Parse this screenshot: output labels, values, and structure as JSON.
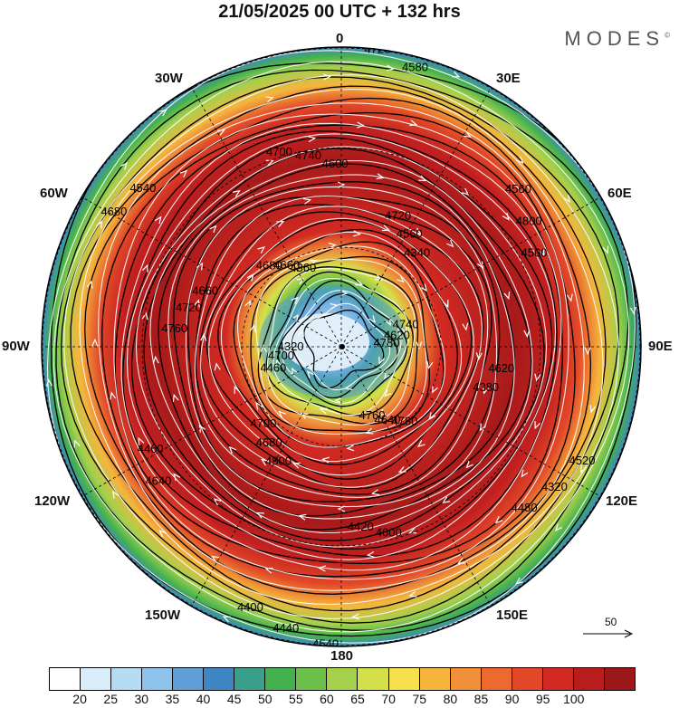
{
  "title": "21/05/2025  00 UTC  + 132 hrs",
  "brand": "MODES",
  "brand_mark": "©",
  "longitude_labels": {
    "n": "0",
    "ne": "30E",
    "e1": "60E",
    "e": "90E",
    "se1": "120E",
    "se": "150E",
    "s": "180",
    "sw": "150W",
    "sw1": "120W",
    "w": "90W",
    "nw1": "60W",
    "nw": "30W"
  },
  "reference_vector": "50",
  "colorbar": {
    "colors": [
      "#ffffff",
      "#d8ecfa",
      "#b6dcf4",
      "#8ec4ec",
      "#5f9fd8",
      "#3f86c4",
      "#3aa08c",
      "#44b14f",
      "#6cc04a",
      "#a4d04c",
      "#d4e04a",
      "#f6e04c",
      "#f5b53d",
      "#f0903a",
      "#ec6a30",
      "#e24828",
      "#d22a22",
      "#b81c1c",
      "#9a1818"
    ],
    "ticks": [
      "20",
      "25",
      "30",
      "35",
      "40",
      "45",
      "50",
      "55",
      "60",
      "65",
      "70",
      "75",
      "80",
      "85",
      "90",
      "95",
      "100"
    ]
  },
  "contour_labels": [
    "4780",
    "4760",
    "4700",
    "4660",
    "4600",
    "4500",
    "4480",
    "4400",
    "4320",
    "4360",
    "4340",
    "4380",
    "4420",
    "4460",
    "4540",
    "4580",
    "4620",
    "4640",
    "4680",
    "4720",
    "4740",
    "4800",
    "4320",
    "4440",
    "4700",
    "4660",
    "4560",
    "4620",
    "4600",
    "4640",
    "4680",
    "4720",
    "4740",
    "4780",
    "4800",
    "4760",
    "4700",
    "4560",
    "4520",
    "4540",
    "4460",
    "4680",
    "4720"
  ]
}
